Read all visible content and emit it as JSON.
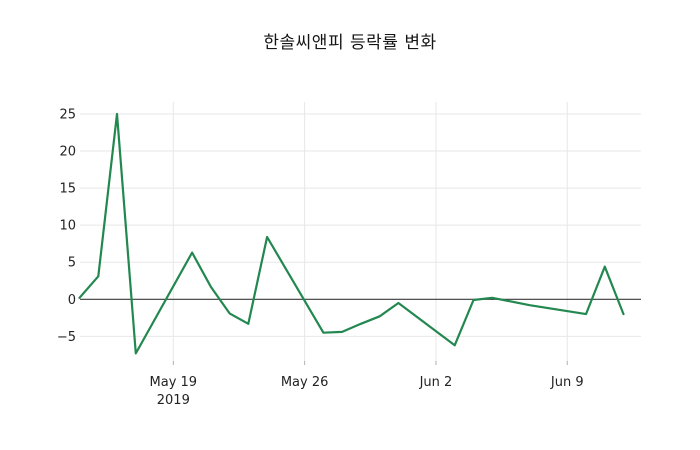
{
  "chart_data": {
    "type": "line",
    "title": "한솔씨앤피 등락률 변화",
    "xlabel": "",
    "ylabel": "",
    "grid": true,
    "legend": false,
    "x_start_date": "2019-05-14",
    "x": [
      "2019-05-14",
      "2019-05-15",
      "2019-05-16",
      "2019-05-17",
      "2019-05-20",
      "2019-05-21",
      "2019-05-22",
      "2019-05-23",
      "2019-05-24",
      "2019-05-27",
      "2019-05-28",
      "2019-05-29",
      "2019-05-30",
      "2019-05-31",
      "2019-06-03",
      "2019-06-04",
      "2019-06-05",
      "2019-06-07",
      "2019-06-10",
      "2019-06-11",
      "2019-06-12"
    ],
    "values": [
      0.2,
      3.1,
      25.0,
      -7.3,
      6.3,
      1.7,
      -1.9,
      -3.3,
      8.4,
      -4.5,
      -4.4,
      -3.3,
      -2.3,
      -0.5,
      -6.2,
      -0.1,
      0.2,
      -0.8,
      -2.0,
      4.4,
      -2.0
    ],
    "ylim": [
      -8.3,
      26.6
    ],
    "yticks": [
      25,
      20,
      15,
      10,
      5,
      0,
      -5
    ],
    "ytick_labels": [
      "25",
      "20",
      "15",
      "10",
      "5",
      "0",
      "−5"
    ],
    "xticks": [
      {
        "date": "2019-05-19",
        "label": "May 19",
        "sublabel": "2019"
      },
      {
        "date": "2019-05-26",
        "label": "May 26",
        "sublabel": ""
      },
      {
        "date": "2019-06-02",
        "label": "Jun 2",
        "sublabel": ""
      },
      {
        "date": "2019-06-09",
        "label": "Jun 9",
        "sublabel": ""
      }
    ],
    "line_color": "#22884f",
    "zero_line_color": "#3a3a3a",
    "grid_color": "#e7e7e7",
    "tick_mark_color": "#b0b0b0",
    "text_color": "#232323",
    "background_color": "#ffffff"
  }
}
